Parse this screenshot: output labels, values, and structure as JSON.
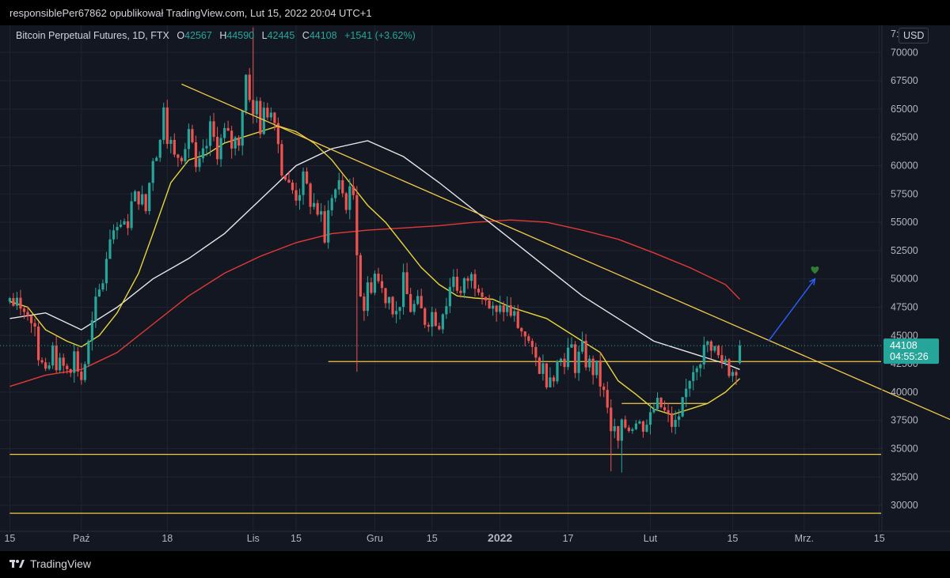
{
  "header": {
    "author_line": "responsiblePer67862 opublikował TradingView.com, Lut 15, 2022 20:04 UTC+1"
  },
  "legend": {
    "symbol": "Bitcoin Perpetual Futures, 1D, FTX",
    "o_label": "O",
    "o_value": "42567",
    "h_label": "H",
    "h_value": "44590",
    "l_label": "L",
    "l_value": "42445",
    "c_label": "C",
    "c_value": "44108",
    "change": "+1541 (+3.62%)"
  },
  "currency_button": "USD",
  "top_partial_tick": "7:",
  "price_badge": {
    "price": "44108",
    "countdown": "04:55:26"
  },
  "footer": {
    "brand": "TradingView"
  },
  "colors": {
    "background": "#131722",
    "up": "#26a69a",
    "down": "#ef5350",
    "ma_yellow": "#e8d53a",
    "ma_white": "#e6e6e6",
    "ma_red": "#e53935",
    "trendline": "#f2c94c",
    "arrow": "#2962ff",
    "heart": "#2e7d32"
  },
  "chart_data": {
    "type": "candlestick",
    "title": "Bitcoin Perpetual Futures, 1D, FTX",
    "x_tick_labels": [
      "15",
      "Paź",
      "18",
      "Lis",
      "15",
      "Gru",
      "15",
      "2022",
      "17",
      "Lut",
      "15",
      "Mrz.",
      "15"
    ],
    "bold_x_tick": "2022",
    "y_tick_labels": [
      "70000",
      "67500",
      "65000",
      "62500",
      "60000",
      "57500",
      "55000",
      "52500",
      "50000",
      "47500",
      "45000",
      "42500",
      "40000",
      "37500",
      "35000",
      "32500",
      "30000"
    ],
    "ylim": [
      29000,
      73000
    ],
    "anchor_closes": [
      [
        0,
        48000
      ],
      [
        2,
        47500
      ],
      [
        4,
        48200
      ],
      [
        6,
        46800
      ],
      [
        8,
        43500
      ],
      [
        10,
        41000
      ],
      [
        12,
        43500
      ],
      [
        14,
        42200
      ],
      [
        16,
        42000
      ],
      [
        18,
        43200
      ],
      [
        20,
        41200
      ],
      [
        22,
        44000
      ],
      [
        24,
        47500
      ],
      [
        26,
        50000
      ],
      [
        28,
        54000
      ],
      [
        30,
        55200
      ],
      [
        32,
        54000
      ],
      [
        34,
        56500
      ],
      [
        36,
        57500
      ],
      [
        38,
        56000
      ],
      [
        40,
        61000
      ],
      [
        42,
        62000
      ],
      [
        43,
        66000
      ],
      [
        44,
        63000
      ],
      [
        46,
        60500
      ],
      [
        48,
        61500
      ],
      [
        50,
        63500
      ],
      [
        51,
        62000
      ],
      [
        52,
        59000
      ],
      [
        54,
        60500
      ],
      [
        56,
        63000
      ],
      [
        58,
        61500
      ],
      [
        60,
        62700
      ],
      [
        62,
        61800
      ],
      [
        64,
        62500
      ],
      [
        66,
        68000
      ],
      [
        67,
        66500
      ],
      [
        68,
        64000
      ],
      [
        69,
        65500
      ],
      [
        70,
        63500
      ],
      [
        72,
        65000
      ],
      [
        74,
        64800
      ],
      [
        75,
        62000
      ],
      [
        76,
        60000
      ],
      [
        78,
        58000
      ],
      [
        80,
        57500
      ],
      [
        82,
        58500
      ],
      [
        84,
        57000
      ],
      [
        86,
        56000
      ],
      [
        88,
        53700
      ],
      [
        90,
        57500
      ],
      [
        92,
        58000
      ],
      [
        94,
        57000
      ],
      [
        96,
        57500
      ],
      [
        97,
        53000
      ],
      [
        98,
        49000
      ],
      [
        99,
        47500
      ],
      [
        100,
        49000
      ],
      [
        102,
        50500
      ],
      [
        104,
        49000
      ],
      [
        106,
        48500
      ],
      [
        108,
        47000
      ],
      [
        110,
        49500
      ],
      [
        112,
        47500
      ],
      [
        114,
        47500
      ],
      [
        116,
        46500
      ],
      [
        118,
        47000
      ],
      [
        120,
        46500
      ],
      [
        122,
        48000
      ],
      [
        124,
        50500
      ],
      [
        126,
        48500
      ],
      [
        128,
        50000
      ],
      [
        130,
        50000
      ],
      [
        132,
        49500
      ],
      [
        134,
        47500
      ],
      [
        136,
        46500
      ],
      [
        138,
        47500
      ],
      [
        140,
        47000
      ],
      [
        142,
        46000
      ],
      [
        144,
        45500
      ],
      [
        146,
        43000
      ],
      [
        148,
        42500
      ],
      [
        150,
        41500
      ],
      [
        152,
        42000
      ],
      [
        154,
        43000
      ],
      [
        156,
        43500
      ],
      [
        158,
        42500
      ],
      [
        160,
        43500
      ],
      [
        162,
        42300
      ],
      [
        164,
        41800
      ],
      [
        166,
        40000
      ],
      [
        168,
        37000
      ],
      [
        170,
        35500
      ],
      [
        171,
        36500
      ],
      [
        172,
        37000
      ],
      [
        174,
        37500
      ],
      [
        176,
        37000
      ],
      [
        178,
        37500
      ],
      [
        180,
        38500
      ],
      [
        182,
        38700
      ],
      [
        184,
        37500
      ],
      [
        186,
        37000
      ],
      [
        188,
        38500
      ],
      [
        190,
        41500
      ],
      [
        192,
        43000
      ],
      [
        194,
        43500
      ],
      [
        196,
        44400
      ],
      [
        198,
        43000
      ],
      [
        200,
        42500
      ],
      [
        202,
        42000
      ],
      [
        203,
        42567
      ],
      [
        204,
        44108
      ]
    ],
    "last_candle": {
      "open": 42567,
      "high": 44590,
      "low": 42445,
      "close": 44108,
      "change": 1541,
      "change_pct": 3.62
    },
    "wick_extremes": [
      [
        68,
        72200
      ],
      [
        97,
        41800
      ],
      [
        168,
        33000
      ],
      [
        171,
        32900
      ]
    ],
    "ma_fast_yellow": [
      [
        0,
        48000
      ],
      [
        5,
        47500
      ],
      [
        10,
        45500
      ],
      [
        16,
        44500
      ],
      [
        20,
        44000
      ],
      [
        25,
        45000
      ],
      [
        30,
        47000
      ],
      [
        36,
        50500
      ],
      [
        40,
        54000
      ],
      [
        45,
        58500
      ],
      [
        50,
        60500
      ],
      [
        55,
        61000
      ],
      [
        60,
        62000
      ],
      [
        65,
        62500
      ],
      [
        70,
        63000
      ],
      [
        75,
        63500
      ],
      [
        80,
        63000
      ],
      [
        85,
        62000
      ],
      [
        90,
        60500
      ],
      [
        95,
        58500
      ],
      [
        100,
        56500
      ],
      [
        105,
        55000
      ],
      [
        110,
        53000
      ],
      [
        115,
        51000
      ],
      [
        120,
        49500
      ],
      [
        125,
        48500
      ],
      [
        130,
        48300
      ],
      [
        135,
        48200
      ],
      [
        140,
        47500
      ],
      [
        145,
        47000
      ],
      [
        150,
        46500
      ],
      [
        155,
        45500
      ],
      [
        160,
        44500
      ],
      [
        165,
        43500
      ],
      [
        170,
        41000
      ],
      [
        175,
        39800
      ],
      [
        180,
        38500
      ],
      [
        185,
        38000
      ],
      [
        190,
        38500
      ],
      [
        195,
        39000
      ],
      [
        200,
        40000
      ],
      [
        204,
        41200
      ]
    ],
    "ma_mid_white": [
      [
        0,
        46500
      ],
      [
        10,
        47000
      ],
      [
        20,
        45500
      ],
      [
        30,
        47500
      ],
      [
        40,
        50000
      ],
      [
        50,
        51800
      ],
      [
        60,
        54000
      ],
      [
        70,
        57000
      ],
      [
        80,
        60000
      ],
      [
        90,
        61500
      ],
      [
        100,
        62200
      ],
      [
        110,
        60800
      ],
      [
        120,
        58500
      ],
      [
        130,
        56000
      ],
      [
        140,
        53500
      ],
      [
        150,
        51000
      ],
      [
        160,
        48500
      ],
      [
        170,
        46500
      ],
      [
        180,
        44500
      ],
      [
        190,
        43500
      ],
      [
        200,
        42500
      ],
      [
        204,
        42000
      ]
    ],
    "ma_slow_red": [
      [
        0,
        40500
      ],
      [
        10,
        41500
      ],
      [
        20,
        42000
      ],
      [
        30,
        43500
      ],
      [
        40,
        46000
      ],
      [
        50,
        48500
      ],
      [
        60,
        50500
      ],
      [
        70,
        52000
      ],
      [
        80,
        53200
      ],
      [
        90,
        54000
      ],
      [
        100,
        54300
      ],
      [
        110,
        54500
      ],
      [
        120,
        54700
      ],
      [
        130,
        55000
      ],
      [
        140,
        55200
      ],
      [
        150,
        55000
      ],
      [
        160,
        54300
      ],
      [
        170,
        53500
      ],
      [
        180,
        52300
      ],
      [
        190,
        51000
      ],
      [
        200,
        49500
      ],
      [
        204,
        48200
      ]
    ],
    "horizontal_levels": [
      {
        "price": 42700,
        "from_index": 89,
        "to_index": "end"
      },
      {
        "price": 34500,
        "from_index": 0,
        "to_index": "end"
      },
      {
        "price": 29300,
        "from_index": 0,
        "to_index": "end"
      },
      {
        "price": 39000,
        "from_index": 171,
        "to_index": 195
      }
    ],
    "trendline": {
      "from": [
        48,
        67200
      ],
      "to": [
        267,
        37000
      ]
    },
    "projection_arrow": {
      "from": [
        212,
        44500
      ],
      "to": [
        225,
        50000
      ]
    },
    "marker": {
      "shape": "heart",
      "at": [
        225,
        50800
      ]
    },
    "x_ticks_at_index": [
      0,
      20,
      44,
      68,
      80,
      102,
      118,
      137,
      156,
      179,
      202,
      222,
      243
    ]
  }
}
